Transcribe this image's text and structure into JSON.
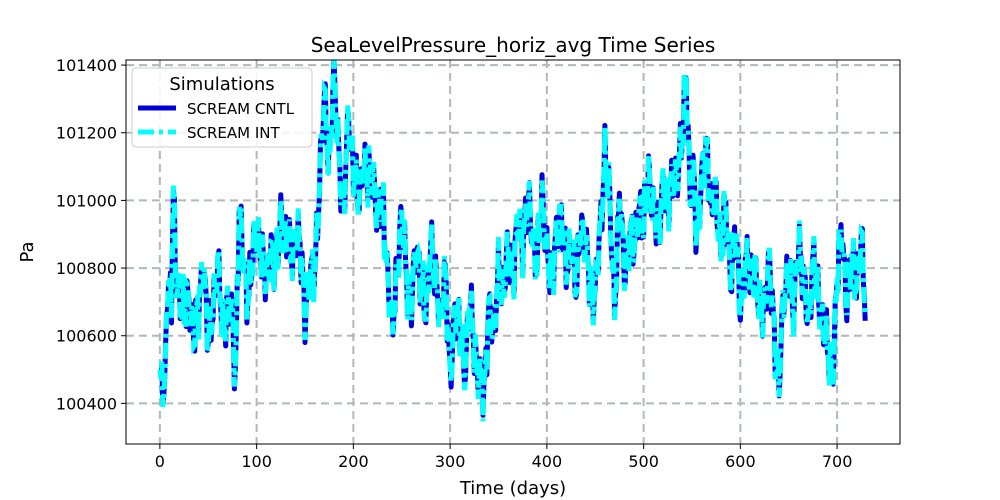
{
  "chart_data": {
    "type": "line",
    "title": "SeaLevelPressure_horiz_avg Time Series",
    "xlabel": "Time (days)",
    "ylabel": "Pa",
    "xlim": [
      -35,
      765
    ],
    "ylim": [
      100280,
      101415
    ],
    "xticks": [
      0,
      100,
      200,
      300,
      400,
      500,
      600,
      700
    ],
    "yticks": [
      100400,
      100600,
      100800,
      101000,
      101200,
      101400
    ],
    "grid": true,
    "legend": {
      "title": "Simulations",
      "placement": "top-left"
    },
    "series": [
      {
        "name": "SCREAM CNTL",
        "color": "#0000dd",
        "style": "solid"
      },
      {
        "name": "SCREAM INT",
        "color": "#00ffff",
        "style": "dashed"
      }
    ],
    "x_step_days": 1,
    "anchors": [
      [
        0,
        100450
      ],
      [
        5,
        100440
      ],
      [
        8,
        100780
      ],
      [
        12,
        100700
      ],
      [
        14,
        101020
      ],
      [
        16,
        100800
      ],
      [
        20,
        100730
      ],
      [
        25,
        100650
      ],
      [
        30,
        100720
      ],
      [
        35,
        100600
      ],
      [
        40,
        100680
      ],
      [
        45,
        100830
      ],
      [
        50,
        100560
      ],
      [
        55,
        100700
      ],
      [
        60,
        100800
      ],
      [
        65,
        100620
      ],
      [
        70,
        100700
      ],
      [
        75,
        100640
      ],
      [
        78,
        100480
      ],
      [
        82,
        100980
      ],
      [
        85,
        100860
      ],
      [
        90,
        100720
      ],
      [
        95,
        100800
      ],
      [
        100,
        100900
      ],
      [
        105,
        100850
      ],
      [
        110,
        100750
      ],
      [
        115,
        100880
      ],
      [
        120,
        100780
      ],
      [
        125,
        100960
      ],
      [
        130,
        100880
      ],
      [
        135,
        100830
      ],
      [
        140,
        100900
      ],
      [
        145,
        100860
      ],
      [
        150,
        100680
      ],
      [
        155,
        100760
      ],
      [
        160,
        100800
      ],
      [
        165,
        101050
      ],
      [
        170,
        101300
      ],
      [
        175,
        101120
      ],
      [
        180,
        101350
      ],
      [
        185,
        101150
      ],
      [
        190,
        100960
      ],
      [
        195,
        101260
      ],
      [
        200,
        101100
      ],
      [
        205,
        100980
      ],
      [
        210,
        101120
      ],
      [
        215,
        101050
      ],
      [
        220,
        101100
      ],
      [
        225,
        100950
      ],
      [
        230,
        101020
      ],
      [
        235,
        100800
      ],
      [
        240,
        100600
      ],
      [
        245,
        100800
      ],
      [
        250,
        100950
      ],
      [
        255,
        100780
      ],
      [
        260,
        100700
      ],
      [
        265,
        100850
      ],
      [
        270,
        100780
      ],
      [
        275,
        100640
      ],
      [
        280,
        100900
      ],
      [
        285,
        100750
      ],
      [
        290,
        100650
      ],
      [
        295,
        100800
      ],
      [
        300,
        100450
      ],
      [
        305,
        100700
      ],
      [
        310,
        100600
      ],
      [
        315,
        100500
      ],
      [
        320,
        100700
      ],
      [
        325,
        100560
      ],
      [
        330,
        100500
      ],
      [
        335,
        100400
      ],
      [
        340,
        100700
      ],
      [
        345,
        100580
      ],
      [
        350,
        100800
      ],
      [
        355,
        100720
      ],
      [
        360,
        100850
      ],
      [
        365,
        100780
      ],
      [
        370,
        100930
      ],
      [
        375,
        100880
      ],
      [
        380,
        101000
      ],
      [
        385,
        100900
      ],
      [
        390,
        100820
      ],
      [
        395,
        101000
      ],
      [
        400,
        100870
      ],
      [
        405,
        100740
      ],
      [
        410,
        100920
      ],
      [
        415,
        100950
      ],
      [
        420,
        100800
      ],
      [
        425,
        100880
      ],
      [
        430,
        100720
      ],
      [
        435,
        100950
      ],
      [
        440,
        100850
      ],
      [
        445,
        100760
      ],
      [
        450,
        100720
      ],
      [
        455,
        100900
      ],
      [
        460,
        101150
      ],
      [
        465,
        100980
      ],
      [
        470,
        100700
      ],
      [
        475,
        101000
      ],
      [
        480,
        100800
      ],
      [
        485,
        100900
      ],
      [
        490,
        100850
      ],
      [
        495,
        101000
      ],
      [
        500,
        100900
      ],
      [
        505,
        101100
      ],
      [
        510,
        100950
      ],
      [
        515,
        100920
      ],
      [
        520,
        101050
      ],
      [
        525,
        100980
      ],
      [
        530,
        101080
      ],
      [
        535,
        101050
      ],
      [
        540,
        101200
      ],
      [
        544,
        101380
      ],
      [
        548,
        100980
      ],
      [
        552,
        101100
      ],
      [
        555,
        100880
      ],
      [
        560,
        101050
      ],
      [
        565,
        101180
      ],
      [
        570,
        100950
      ],
      [
        575,
        101020
      ],
      [
        580,
        100850
      ],
      [
        585,
        100980
      ],
      [
        590,
        100780
      ],
      [
        595,
        100900
      ],
      [
        600,
        100700
      ],
      [
        605,
        100820
      ],
      [
        610,
        100760
      ],
      [
        615,
        100800
      ],
      [
        620,
        100650
      ],
      [
        625,
        100720
      ],
      [
        630,
        100800
      ],
      [
        635,
        100620
      ],
      [
        640,
        100450
      ],
      [
        645,
        100720
      ],
      [
        650,
        100800
      ],
      [
        655,
        100650
      ],
      [
        660,
        100900
      ],
      [
        665,
        100760
      ],
      [
        670,
        100650
      ],
      [
        675,
        100820
      ],
      [
        680,
        100720
      ],
      [
        685,
        100650
      ],
      [
        690,
        100550
      ],
      [
        695,
        100480
      ],
      [
        700,
        100760
      ],
      [
        705,
        100920
      ],
      [
        710,
        100700
      ],
      [
        715,
        100820
      ],
      [
        720,
        100760
      ],
      [
        725,
        100870
      ],
      [
        729,
        100700
      ]
    ]
  }
}
